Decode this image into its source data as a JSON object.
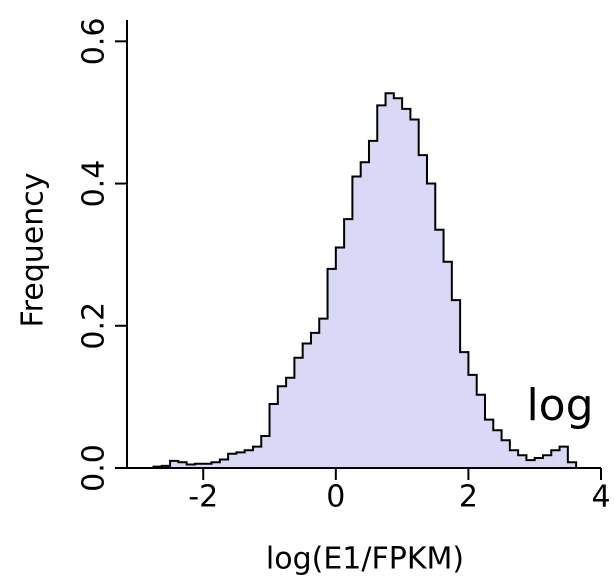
{
  "chart_data": {
    "type": "histogram",
    "annotation": "log",
    "x_label": "log(E1/FPKM)",
    "y_label": "Frequency",
    "bins": [
      -2.75,
      -2.625,
      -2.5,
      -2.375,
      -2.25,
      -2.125,
      -2.0,
      -1.875,
      -1.75,
      -1.625,
      -1.5,
      -1.375,
      -1.25,
      -1.125,
      -1.0,
      -0.875,
      -0.75,
      -0.625,
      -0.5,
      -0.375,
      -0.25,
      -0.125,
      0.0,
      0.125,
      0.25,
      0.375,
      0.5,
      0.625,
      0.75,
      0.875,
      1.0,
      1.125,
      1.25,
      1.375,
      1.5,
      1.625,
      1.75,
      1.875,
      2.0,
      2.125,
      2.25,
      2.375,
      2.5,
      2.625,
      2.75,
      2.875,
      3.0,
      3.125,
      3.25,
      3.375,
      3.5,
      3.625
    ],
    "values": [
      0.002,
      0.003,
      0.01,
      0.008,
      0.005,
      0.006,
      0.006,
      0.008,
      0.012,
      0.02,
      0.022,
      0.025,
      0.03,
      0.045,
      0.09,
      0.115,
      0.127,
      0.155,
      0.175,
      0.19,
      0.21,
      0.28,
      0.31,
      0.35,
      0.41,
      0.43,
      0.46,
      0.51,
      0.527,
      0.52,
      0.505,
      0.49,
      0.44,
      0.4,
      0.335,
      0.29,
      0.236,
      0.163,
      0.131,
      0.103,
      0.068,
      0.053,
      0.039,
      0.025,
      0.018,
      0.011,
      0.014,
      0.018,
      0.025,
      0.03,
      0.008
    ],
    "color": "#d9d9f7",
    "xlim": [
      -3.15,
      4
    ],
    "ylim": [
      0,
      0.63
    ],
    "xticks": [
      -2,
      0,
      2,
      4
    ],
    "yticks": [
      {
        "value": 0,
        "label": "0.0"
      },
      0.2,
      0.4,
      0.6
    ]
  }
}
